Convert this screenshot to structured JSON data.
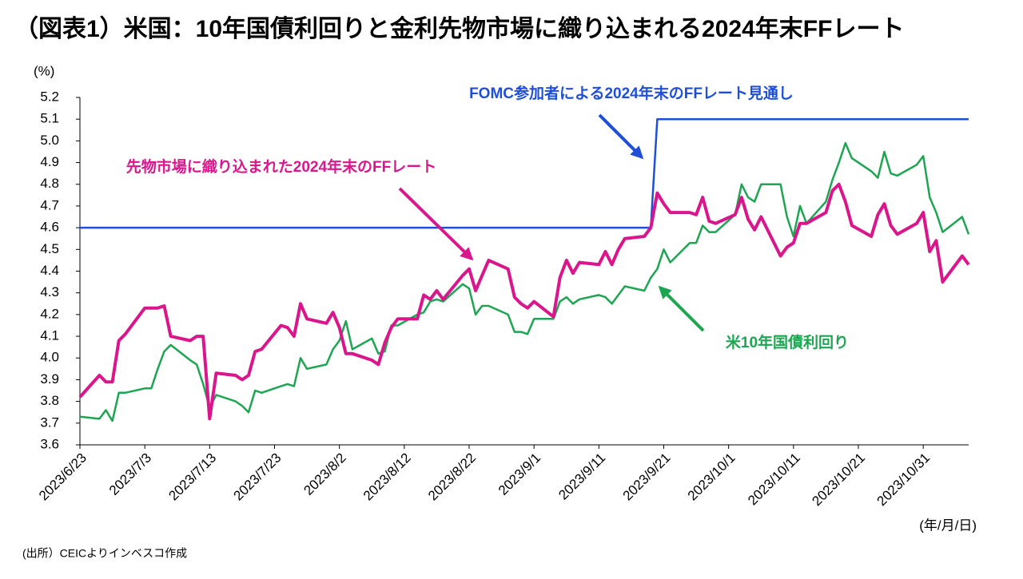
{
  "chart_data": {
    "type": "line",
    "title": "（図表1）米国：10年国債利回りと金利先物市場に織り込まれる2024年末FFレート",
    "y_unit_label": "(%)",
    "x_unit_label": "(年/月/日)",
    "source": "(出所）CEICよりインベスコ作成",
    "x": [
      "2023/6/23",
      "2023/6/26",
      "2023/6/27",
      "2023/6/28",
      "2023/6/29",
      "2023/6/30",
      "2023/7/3",
      "2023/7/4",
      "2023/7/5",
      "2023/7/6",
      "2023/7/7",
      "2023/7/10",
      "2023/7/11",
      "2023/7/12",
      "2023/7/13",
      "2023/7/14",
      "2023/7/17",
      "2023/7/18",
      "2023/7/19",
      "2023/7/20",
      "2023/7/21",
      "2023/7/24",
      "2023/7/25",
      "2023/7/26",
      "2023/7/27",
      "2023/7/28",
      "2023/7/31",
      "2023/8/1",
      "2023/8/2",
      "2023/8/3",
      "2023/8/4",
      "2023/8/7",
      "2023/8/8",
      "2023/8/9",
      "2023/8/10",
      "2023/8/11",
      "2023/8/14",
      "2023/8/15",
      "2023/8/16",
      "2023/8/17",
      "2023/8/18",
      "2023/8/21",
      "2023/8/22",
      "2023/8/23",
      "2023/8/24",
      "2023/8/25",
      "2023/8/28",
      "2023/8/29",
      "2023/8/30",
      "2023/8/31",
      "2023/9/1",
      "2023/9/4",
      "2023/9/5",
      "2023/9/6",
      "2023/9/7",
      "2023/9/8",
      "2023/9/11",
      "2023/9/12",
      "2023/9/13",
      "2023/9/14",
      "2023/9/15",
      "2023/9/18",
      "2023/9/19",
      "2023/9/20",
      "2023/9/21",
      "2023/9/22",
      "2023/9/25",
      "2023/9/26",
      "2023/9/27",
      "2023/9/28",
      "2023/9/29",
      "2023/10/2",
      "2023/10/3",
      "2023/10/4",
      "2023/10/5",
      "2023/10/6",
      "2023/10/9",
      "2023/10/10",
      "2023/10/11",
      "2023/10/12",
      "2023/10/13",
      "2023/10/16",
      "2023/10/17",
      "2023/10/18",
      "2023/10/19",
      "2023/10/20",
      "2023/10/23",
      "2023/10/24",
      "2023/10/25",
      "2023/10/26",
      "2023/10/27",
      "2023/10/30",
      "2023/10/31",
      "2023/11/1",
      "2023/11/2",
      "2023/11/3",
      "2023/11/6",
      "2023/11/7"
    ],
    "series": [
      {
        "name": "先物市場に織り込まれた2024年末のFFレート",
        "color": "#d9168c",
        "values": [
          3.82,
          3.92,
          3.89,
          3.89,
          4.08,
          4.11,
          4.23,
          4.23,
          4.23,
          4.24,
          4.1,
          4.08,
          4.1,
          4.1,
          3.72,
          3.93,
          3.92,
          3.9,
          3.92,
          4.03,
          4.04,
          4.15,
          4.14,
          4.1,
          4.25,
          4.18,
          4.16,
          4.21,
          4.14,
          4.02,
          4.02,
          3.99,
          3.97,
          4.07,
          4.14,
          4.18,
          4.18,
          4.29,
          4.27,
          4.31,
          4.27,
          4.38,
          4.41,
          4.31,
          4.38,
          4.45,
          4.41,
          4.28,
          4.25,
          4.23,
          4.26,
          4.19,
          4.37,
          4.45,
          4.39,
          4.44,
          4.43,
          4.49,
          4.43,
          4.5,
          4.55,
          4.56,
          4.6,
          4.76,
          4.71,
          4.67,
          4.67,
          4.66,
          4.74,
          4.63,
          4.62,
          4.66,
          4.74,
          4.64,
          4.59,
          4.65,
          4.47,
          4.51,
          4.53,
          4.62,
          4.62,
          4.67,
          4.77,
          4.8,
          4.72,
          4.61,
          4.56,
          4.66,
          4.71,
          4.61,
          4.57,
          4.62,
          4.67,
          4.49,
          4.54,
          4.35,
          4.47,
          4.43
        ]
      },
      {
        "name": "米10年国債利回り",
        "color": "#1ea552",
        "values": [
          3.73,
          3.72,
          3.76,
          3.71,
          3.84,
          3.84,
          3.86,
          3.86,
          3.95,
          4.03,
          4.06,
          3.99,
          3.97,
          3.88,
          3.77,
          3.83,
          3.8,
          3.78,
          3.75,
          3.85,
          3.84,
          3.87,
          3.88,
          3.87,
          4.0,
          3.95,
          3.97,
          4.04,
          4.08,
          4.17,
          4.04,
          4.09,
          4.02,
          4.03,
          4.15,
          4.15,
          4.2,
          4.21,
          4.26,
          4.27,
          4.26,
          4.34,
          4.32,
          4.2,
          4.24,
          4.24,
          4.2,
          4.12,
          4.12,
          4.11,
          4.18,
          4.18,
          4.26,
          4.28,
          4.25,
          4.27,
          4.29,
          4.28,
          4.25,
          4.29,
          4.33,
          4.31,
          4.37,
          4.41,
          4.5,
          4.44,
          4.53,
          4.53,
          4.61,
          4.58,
          4.58,
          4.66,
          4.8,
          4.74,
          4.72,
          4.8,
          4.8,
          4.65,
          4.56,
          4.7,
          4.62,
          4.72,
          4.82,
          4.9,
          4.99,
          4.92,
          4.86,
          4.83,
          4.95,
          4.85,
          4.84,
          4.89,
          4.93,
          4.74,
          4.67,
          4.58,
          4.65,
          4.57
        ]
      },
      {
        "name": "FOMC参加者による2024年末のFFレート見通し",
        "color": "#1f4fd6",
        "values": [
          4.6,
          4.6,
          4.6,
          4.6,
          4.6,
          4.6,
          4.6,
          4.6,
          4.6,
          4.6,
          4.6,
          4.6,
          4.6,
          4.6,
          4.6,
          4.6,
          4.6,
          4.6,
          4.6,
          4.6,
          4.6,
          4.6,
          4.6,
          4.6,
          4.6,
          4.6,
          4.6,
          4.6,
          4.6,
          4.6,
          4.6,
          4.6,
          4.6,
          4.6,
          4.6,
          4.6,
          4.6,
          4.6,
          4.6,
          4.6,
          4.6,
          4.6,
          4.6,
          4.6,
          4.6,
          4.6,
          4.6,
          4.6,
          4.6,
          4.6,
          4.6,
          4.6,
          4.6,
          4.6,
          4.6,
          4.6,
          4.6,
          4.6,
          4.6,
          4.6,
          4.6,
          4.6,
          4.6,
          5.1,
          5.1,
          5.1,
          5.1,
          5.1,
          5.1,
          5.1,
          5.1,
          5.1,
          5.1,
          5.1,
          5.1,
          5.1,
          5.1,
          5.1,
          5.1,
          5.1,
          5.1,
          5.1,
          5.1,
          5.1,
          5.1,
          5.1,
          5.1,
          5.1,
          5.1,
          5.1,
          5.1,
          5.1,
          5.1,
          5.1,
          5.1,
          5.1,
          5.1,
          5.1
        ]
      }
    ],
    "xlim": [
      "2023/6/23",
      "2023/11/7"
    ],
    "xticks": [
      "2023/6/23",
      "2023/7/3",
      "2023/7/13",
      "2023/7/23",
      "2023/8/2",
      "2023/8/12",
      "2023/8/22",
      "2023/9/1",
      "2023/9/11",
      "2023/9/21",
      "2023/10/1",
      "2023/10/11",
      "2023/10/21",
      "2023/10/31"
    ],
    "ylim": [
      3.6,
      5.2
    ],
    "yticks": [
      3.6,
      3.7,
      3.8,
      3.9,
      {
        "value": 4,
        "label": "4.0"
      },
      4.1,
      4.2,
      4.3,
      4.4,
      4.5,
      4.6,
      4.7,
      4.8,
      4.9,
      {
        "value": 5,
        "label": "5.0"
      },
      5.1,
      5.2
    ],
    "grid": false
  }
}
